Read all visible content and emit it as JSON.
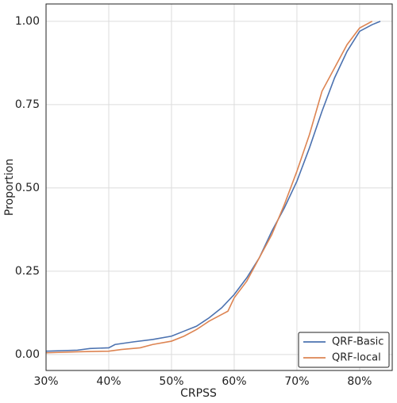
{
  "chart_data": {
    "type": "line",
    "x_label": "CRPSS",
    "y_label": "Proportion",
    "xlim": [
      30,
      85.2
    ],
    "ylim": [
      -0.048,
      1.052
    ],
    "xticks": [
      {
        "value": 30,
        "label": "30%"
      },
      {
        "value": 40,
        "label": "40%"
      },
      {
        "value": 50,
        "label": "50%"
      },
      {
        "value": 60,
        "label": "60%"
      },
      {
        "value": 70,
        "label": "70%"
      },
      {
        "value": 80,
        "label": "80%"
      }
    ],
    "yticks": [
      {
        "value": 0,
        "label": "0.00"
      },
      {
        "value": 0.25,
        "label": "0.25"
      },
      {
        "value": 0.5,
        "label": "0.50"
      },
      {
        "value": 0.75,
        "label": "0.75"
      },
      {
        "value": 1,
        "label": "1.00"
      }
    ],
    "grid": true,
    "legend": "lower right",
    "series": [
      {
        "name": "QRF-Basic",
        "color": "#4c72b0",
        "x": [
          30,
          35,
          37,
          40,
          41,
          44,
          47,
          50,
          52,
          54,
          56,
          58,
          60,
          62,
          64,
          66,
          68,
          70,
          72,
          74,
          76,
          78,
          80,
          82,
          83.3
        ],
        "values": [
          0.01,
          0.013,
          0.018,
          0.02,
          0.03,
          0.038,
          0.045,
          0.055,
          0.07,
          0.085,
          0.11,
          0.14,
          0.18,
          0.23,
          0.29,
          0.37,
          0.44,
          0.52,
          0.62,
          0.73,
          0.83,
          0.91,
          0.97,
          0.99,
          1.0
        ]
      },
      {
        "name": "QRF-local",
        "color": "#dd8452",
        "x": [
          30,
          35,
          40,
          42,
          45,
          47,
          50,
          52,
          54,
          56,
          58,
          59,
          60,
          62,
          64,
          66,
          68,
          70,
          72,
          74,
          76,
          78,
          80,
          82
        ],
        "values": [
          0.005,
          0.008,
          0.01,
          0.015,
          0.02,
          0.03,
          0.04,
          0.055,
          0.075,
          0.1,
          0.12,
          0.13,
          0.17,
          0.22,
          0.29,
          0.36,
          0.45,
          0.55,
          0.66,
          0.79,
          0.86,
          0.93,
          0.98,
          1.0
        ]
      }
    ]
  }
}
